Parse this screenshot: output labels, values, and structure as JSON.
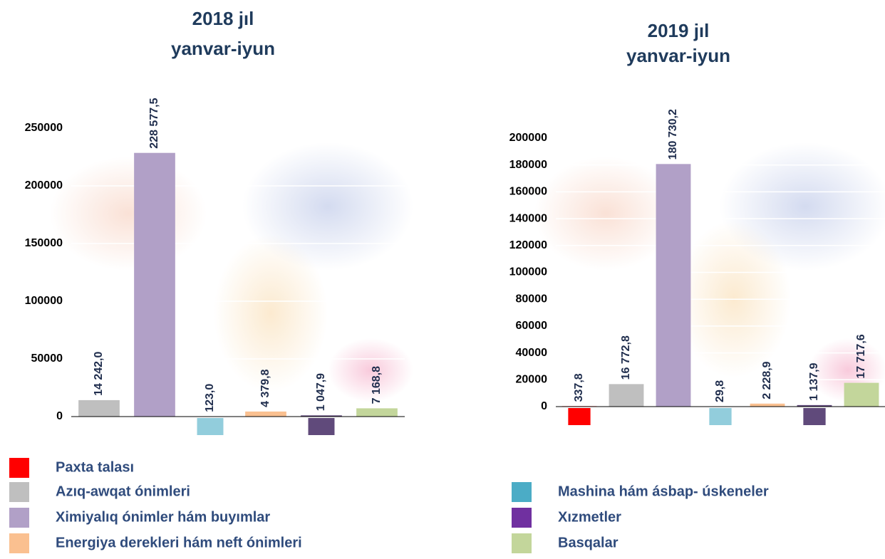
{
  "chart_data": [
    {
      "type": "bar",
      "title": "2018 jıl",
      "subtitle": "yanvar-iyun",
      "categories": [
        null,
        null,
        null,
        null,
        null,
        null
      ],
      "values": [
        14242.0,
        228577.5,
        123.0,
        4379.8,
        1047.9,
        7168.8
      ],
      "value_labels": [
        "14 242,0",
        "228 577,5",
        "123,0",
        "4 379,8",
        "1 047,9",
        "7 168,8"
      ],
      "colors": [
        "#bfbfbf",
        "#b1a0c7",
        "#92cddc",
        "#fac090",
        "#604a7b",
        "#c3d69b"
      ],
      "ylim": [
        0,
        250000
      ],
      "yticks": [
        0,
        50000,
        100000,
        150000,
        200000,
        250000
      ],
      "grid": true
    },
    {
      "type": "bar",
      "title": "2019 jıl",
      "subtitle": "yanvar-iyun",
      "categories": [
        null,
        null,
        null,
        null,
        null,
        null,
        null
      ],
      "values": [
        337.8,
        16772.8,
        180730.2,
        29.8,
        2228.9,
        1137.9,
        17717.6
      ],
      "value_labels": [
        "337,8",
        "16 772,8",
        "180 730,2",
        "29,8",
        "2 228,9",
        "1 137,9",
        "17 717,6"
      ],
      "colors": [
        "#ff0000",
        "#bfbfbf",
        "#b1a0c7",
        "#92cddc",
        "#fac090",
        "#604a7b",
        "#c3d69b"
      ],
      "ylim": [
        0,
        200000
      ],
      "yticks": [
        0,
        20000,
        40000,
        60000,
        80000,
        100000,
        120000,
        140000,
        160000,
        180000,
        200000
      ],
      "grid": true
    }
  ],
  "legend": {
    "items": [
      {
        "name": "Paxta talası",
        "color": "#ff0000"
      },
      {
        "name": "Azıq-awqat ónimleri",
        "color": "#bfbfbf"
      },
      {
        "name": "Ximiyalıq ónimler hám buyımlar",
        "color": "#b1a0c7"
      },
      {
        "name": "Energiya derekleri hám neft ónimleri",
        "color": "#fac090"
      },
      {
        "name": "Mashina hám ásbap- úskeneler",
        "color": "#4bacc6"
      },
      {
        "name": "Xızmetler",
        "color": "#7030a0"
      },
      {
        "name": "Basqalar",
        "color": "#c3d69b"
      }
    ]
  }
}
